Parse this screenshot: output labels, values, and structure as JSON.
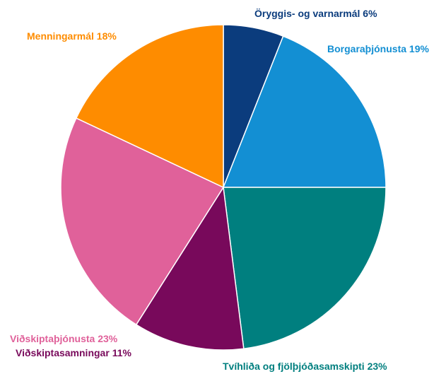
{
  "chart_data": {
    "type": "pie",
    "categories": [
      "Öryggis- og varnarmál",
      "Borgaraþjónusta",
      "Tvíhliða og fjölþjóðasamskipti",
      "Viðskiptasamningar",
      "Viðskiptaþjónusta",
      "Menningarmál"
    ],
    "values": [
      6,
      19,
      23,
      11,
      23,
      18
    ],
    "value_labels": [
      "6%",
      "19%",
      "23%",
      "11%",
      "23%",
      "18%"
    ],
    "colors": [
      "#0b3c7d",
      "#138fd3",
      "#007f7f",
      "#78095b",
      "#e0619a",
      "#fe8c00"
    ]
  }
}
